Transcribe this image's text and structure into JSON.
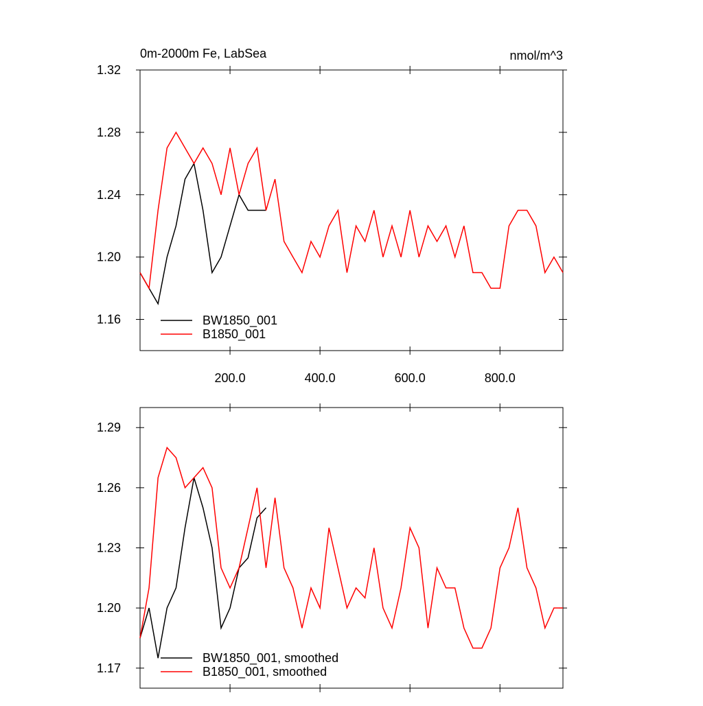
{
  "chart_data": [
    {
      "type": "line",
      "title": "0m-2000m Fe, LabSea",
      "units": "nmol/m^3",
      "x": [
        0,
        20,
        40,
        60,
        80,
        100,
        120,
        140,
        160,
        180,
        200,
        220,
        240,
        260,
        280,
        300,
        320,
        340,
        360,
        380,
        400,
        420,
        440,
        460,
        480,
        500,
        520,
        540,
        560,
        580,
        600,
        620,
        640,
        660,
        680,
        700,
        720,
        740,
        760,
        780,
        800,
        820,
        840,
        860,
        880,
        900,
        920,
        940
      ],
      "series": [
        {
          "name": "BW1850_001",
          "color": "#000000",
          "values": [
            1.19,
            1.18,
            1.17,
            1.2,
            1.22,
            1.25,
            1.26,
            1.23,
            1.19,
            1.2,
            1.22,
            1.24,
            1.23,
            1.23,
            1.23,
            null,
            null,
            null,
            null,
            null,
            null,
            null,
            null,
            null,
            null,
            null,
            null,
            null,
            null,
            null,
            null,
            null,
            null,
            null,
            null,
            null,
            null,
            null,
            null,
            null,
            null,
            null,
            null,
            null,
            null,
            null,
            null,
            null
          ]
        },
        {
          "name": "B1850_001",
          "color": "#ff0000",
          "values": [
            1.19,
            1.18,
            1.23,
            1.27,
            1.28,
            1.27,
            1.26,
            1.27,
            1.26,
            1.24,
            1.27,
            1.24,
            1.26,
            1.27,
            1.23,
            1.25,
            1.21,
            1.2,
            1.19,
            1.21,
            1.2,
            1.22,
            1.23,
            1.19,
            1.22,
            1.21,
            1.23,
            1.2,
            1.22,
            1.2,
            1.23,
            1.2,
            1.22,
            1.21,
            1.22,
            1.2,
            1.22,
            1.19,
            1.19,
            1.18,
            1.18,
            1.22,
            1.23,
            1.23,
            1.22,
            1.19,
            1.2,
            1.19
          ]
        }
      ],
      "xlim": [
        0,
        940
      ],
      "xticks": [
        {
          "value": 200,
          "label": "200.0"
        },
        {
          "value": 400,
          "label": "400.0"
        },
        {
          "value": 600,
          "label": "600.0"
        },
        {
          "value": 800,
          "label": "800.0"
        }
      ],
      "ylim": [
        1.14,
        1.32
      ],
      "yticks": [
        1.16,
        {
          "value": 1.2,
          "label": "1.20"
        },
        1.24,
        1.28,
        1.32
      ]
    },
    {
      "type": "line",
      "x": [
        0,
        20,
        40,
        60,
        80,
        100,
        120,
        140,
        160,
        180,
        200,
        220,
        240,
        260,
        280,
        300,
        320,
        340,
        360,
        380,
        400,
        420,
        440,
        460,
        480,
        500,
        520,
        540,
        560,
        580,
        600,
        620,
        640,
        660,
        680,
        700,
        720,
        740,
        760,
        780,
        800,
        820,
        840,
        860,
        880,
        900,
        920,
        940
      ],
      "series": [
        {
          "name": "BW1850_001, smoothed",
          "color": "#000000",
          "values": [
            1.185,
            1.2,
            1.175,
            1.2,
            1.21,
            1.24,
            1.265,
            1.25,
            1.23,
            1.19,
            1.2,
            1.22,
            1.225,
            1.245,
            1.25,
            null,
            null,
            null,
            null,
            null,
            null,
            null,
            null,
            null,
            null,
            null,
            null,
            null,
            null,
            null,
            null,
            null,
            null,
            null,
            null,
            null,
            null,
            null,
            null,
            null,
            null,
            null,
            null,
            null,
            null,
            null,
            null,
            null
          ]
        },
        {
          "name": "B1850_001, smoothed",
          "color": "#ff0000",
          "values": [
            1.185,
            1.21,
            1.265,
            1.28,
            1.275,
            1.26,
            1.265,
            1.27,
            1.26,
            1.22,
            1.21,
            1.22,
            1.24,
            1.26,
            1.22,
            1.255,
            1.22,
            1.21,
            1.19,
            1.21,
            1.2,
            1.24,
            1.22,
            1.2,
            1.21,
            1.205,
            1.23,
            1.2,
            1.19,
            1.21,
            1.24,
            1.23,
            1.19,
            1.22,
            1.21,
            1.21,
            1.19,
            1.18,
            1.18,
            1.19,
            1.22,
            1.23,
            1.25,
            1.22,
            1.21,
            1.19,
            1.2,
            1.2
          ]
        }
      ],
      "xlim": [
        0,
        940
      ],
      "xticks": [
        200,
        400,
        600,
        800
      ],
      "ylim": [
        1.16,
        1.3
      ],
      "yticks": [
        1.17,
        {
          "value": 1.2,
          "label": "1.20"
        },
        1.23,
        1.26,
        1.29
      ]
    }
  ]
}
